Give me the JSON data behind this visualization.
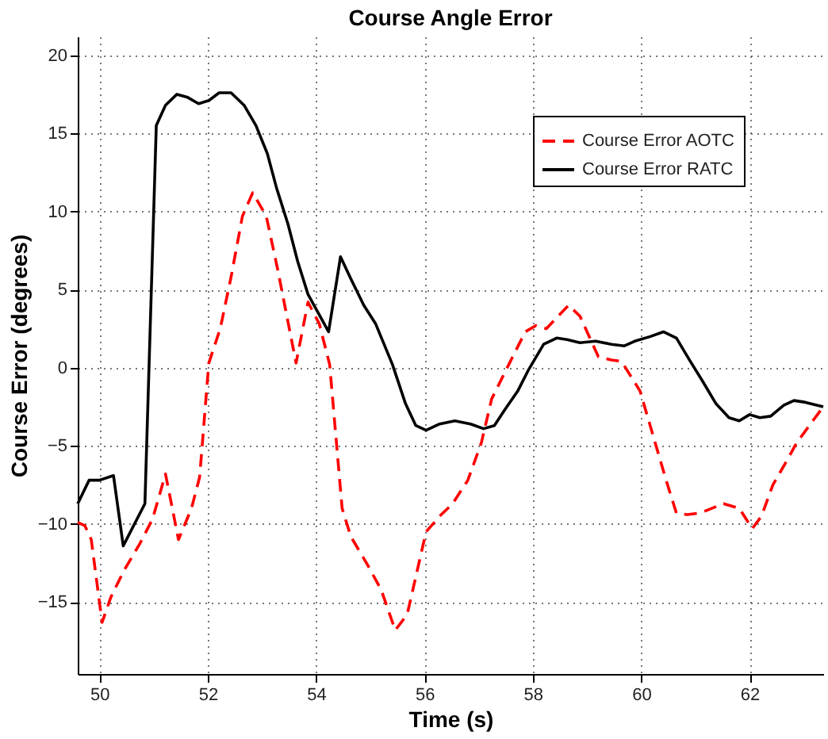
{
  "chart_data": {
    "type": "line",
    "title": "Course Angle Error",
    "xlabel": "Time (s)",
    "ylabel": "Course Error (degrees)",
    "xlim": [
      49.6,
      63.36
    ],
    "ylim": [
      -19.6,
      21.2
    ],
    "xticks": [
      50,
      52,
      54,
      56,
      58,
      60,
      62
    ],
    "yticks": [
      -15,
      -10,
      -5,
      0,
      5,
      10,
      15,
      20
    ],
    "grid": true,
    "legend": "top right",
    "series": [
      {
        "name": "Course Error AOTC",
        "color": "#ff0000",
        "line_style": "dashed",
        "x": [
          49.6,
          49.73,
          49.85,
          50.05,
          50.21,
          50.45,
          50.74,
          50.98,
          51.22,
          51.46,
          51.7,
          51.85,
          52.02,
          52.23,
          52.43,
          52.64,
          52.83,
          53.08,
          53.29,
          53.63,
          53.85,
          54.06,
          54.25,
          54.48,
          54.64,
          54.93,
          55.2,
          55.46,
          55.68,
          56.03,
          56.28,
          56.52,
          56.8,
          57.05,
          57.24,
          57.57,
          57.86,
          58.06,
          58.25,
          58.66,
          58.87,
          59.21,
          59.45,
          59.64,
          59.98,
          60.46,
          60.65,
          60.85,
          61.09,
          61.52,
          61.81,
          62.05,
          62.22,
          62.43,
          62.68,
          62.87,
          63.36
        ],
        "values": [
          -9.9,
          -10.1,
          -11.0,
          -16.3,
          -14.7,
          -13.0,
          -11.3,
          -9.7,
          -6.8,
          -11.0,
          -9.0,
          -7.0,
          0.3,
          2.5,
          5.8,
          9.7,
          11.2,
          9.7,
          6.3,
          0.3,
          4.2,
          2.8,
          0.2,
          -9.0,
          -10.8,
          -12.5,
          -14.2,
          -16.8,
          -15.8,
          -10.5,
          -9.5,
          -8.7,
          -7.2,
          -4.8,
          -2.0,
          0.3,
          2.3,
          2.7,
          2.5,
          4.0,
          3.3,
          0.7,
          0.5,
          0.4,
          -1.5,
          -7.2,
          -9.3,
          -9.4,
          -9.3,
          -8.7,
          -9.0,
          -10.3,
          -9.5,
          -7.5,
          -6.0,
          -4.8,
          -2.5
        ]
      },
      {
        "name": "Course Error RATC",
        "color": "#000000",
        "line_style": "solid",
        "x": [
          49.6,
          49.81,
          50.0,
          50.26,
          50.44,
          50.84,
          51.05,
          51.22,
          51.43,
          51.63,
          51.83,
          52.02,
          52.21,
          52.43,
          52.67,
          52.89,
          53.1,
          53.27,
          53.48,
          53.66,
          53.85,
          54.23,
          54.45,
          54.64,
          54.88,
          55.1,
          55.41,
          55.65,
          55.84,
          56.03,
          56.28,
          56.56,
          56.85,
          57.09,
          57.29,
          57.48,
          57.72,
          57.91,
          58.2,
          58.44,
          58.63,
          58.87,
          59.16,
          59.45,
          59.69,
          59.88,
          60.17,
          60.41,
          60.65,
          60.89,
          61.14,
          61.38,
          61.62,
          61.81,
          62.0,
          62.19,
          62.39,
          62.63,
          62.82,
          63.01,
          63.36
        ],
        "values": [
          -8.7,
          -7.2,
          -7.2,
          -6.9,
          -11.4,
          -8.7,
          15.5,
          16.8,
          17.5,
          17.3,
          16.9,
          17.1,
          17.6,
          17.6,
          16.8,
          15.5,
          13.7,
          11.5,
          9.2,
          6.8,
          4.7,
          2.3,
          7.1,
          5.7,
          4.0,
          2.8,
          0.2,
          -2.3,
          -3.7,
          -4.0,
          -3.6,
          -3.4,
          -3.6,
          -3.9,
          -3.7,
          -2.7,
          -1.5,
          -0.2,
          1.5,
          1.9,
          1.8,
          1.6,
          1.7,
          1.5,
          1.4,
          1.7,
          2.0,
          2.3,
          1.9,
          0.5,
          -0.9,
          -2.3,
          -3.2,
          -3.4,
          -3.0,
          -3.2,
          -3.1,
          -2.4,
          -2.1,
          -2.2,
          -2.5
        ]
      }
    ]
  }
}
